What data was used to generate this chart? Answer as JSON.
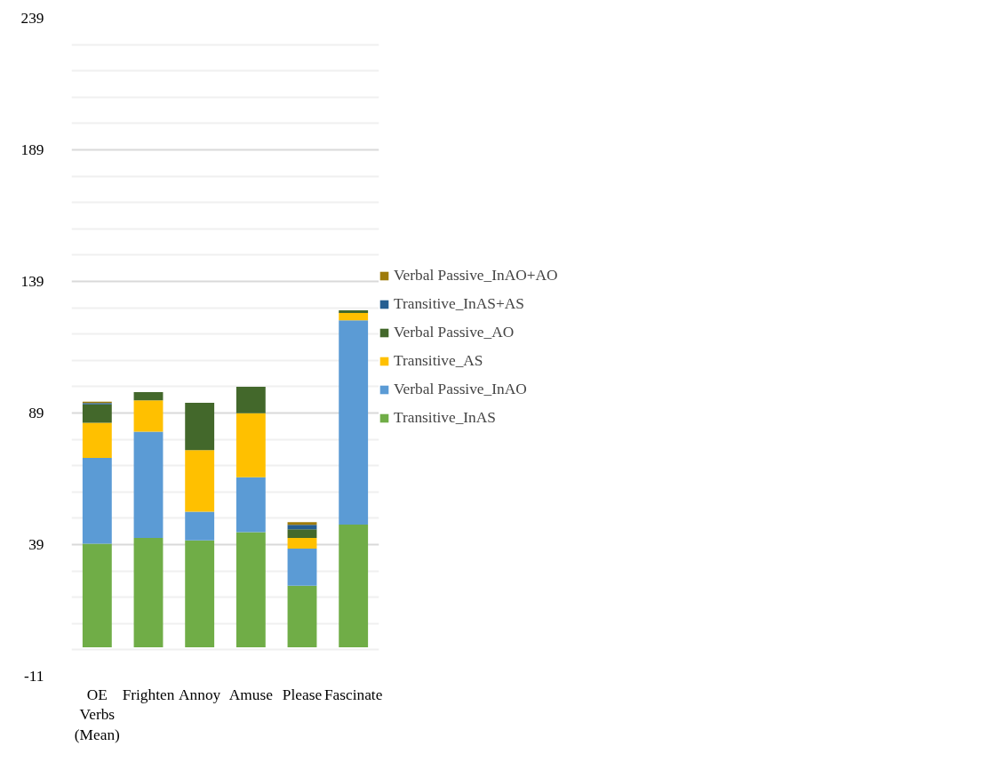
{
  "chart_data": {
    "type": "bar",
    "stacked": true,
    "categories": [
      "OE Verbs (Mean)",
      "Frighten",
      "Annoy",
      "Amuse",
      "Please",
      "Fascinate"
    ],
    "series": [
      {
        "name": "Transitive_InAS",
        "color": "#70ad47",
        "values": [
          39.3,
          41.5,
          40.6,
          43.7,
          23.4,
          46.6
        ]
      },
      {
        "name": "Verbal Passive_InAO",
        "color": "#5b9bd5",
        "values": [
          32.6,
          40.4,
          10.9,
          20.9,
          14.1,
          77.6
        ]
      },
      {
        "name": "Transitive_AS",
        "color": "#ffc000",
        "values": [
          13.4,
          11.9,
          23.4,
          24.3,
          4,
          2.8
        ]
      },
      {
        "name": "Verbal Passive_AO",
        "color": "#43682b",
        "values": [
          7,
          3.1,
          18,
          10.1,
          3.3,
          1
        ]
      },
      {
        "name": "Transitive_InAS+AS",
        "color": "#255e91",
        "values": [
          0.5,
          0,
          0,
          0,
          1.7,
          0
        ]
      },
      {
        "name": "Verbal Passive_InAO+AO",
        "color": "#9e7b0a",
        "values": [
          0.5,
          0,
          0,
          0,
          1,
          0
        ]
      }
    ],
    "ylim": [
      -11,
      239
    ],
    "yticks": [
      -11,
      39,
      89,
      139,
      189,
      239
    ],
    "grid": "y",
    "legend": "right"
  }
}
